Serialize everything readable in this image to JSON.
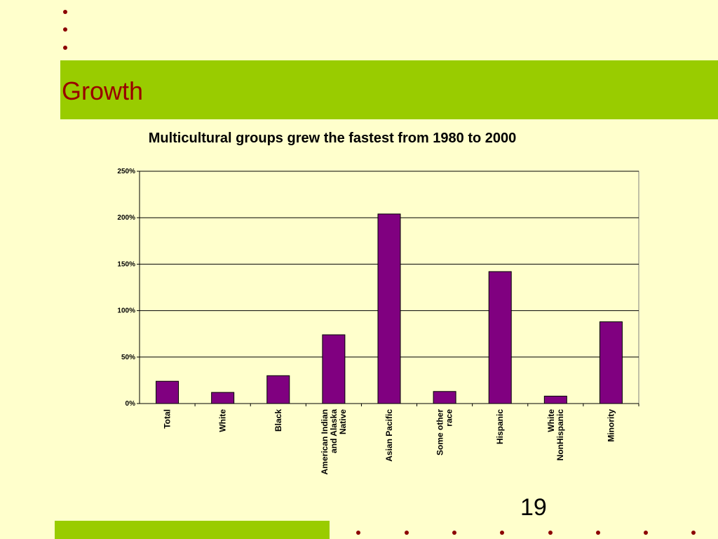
{
  "slide": {
    "title": "Growth",
    "page_number": "19",
    "accent_color": "#99cc00",
    "title_color": "#990000",
    "background_color": "#ffffcc",
    "bullet_color": "#8b0000"
  },
  "chart_data": {
    "type": "bar",
    "title": "Multicultural groups grew the fastest from 1980 to 2000",
    "xlabel": "",
    "ylabel": "",
    "categories": [
      [
        "Total"
      ],
      [
        "White"
      ],
      [
        "Black"
      ],
      [
        "American Indian",
        "and Alaska",
        "Native"
      ],
      [
        "Asian Pacific"
      ],
      [
        "Some other",
        "race"
      ],
      [
        "Hispanic"
      ],
      [
        "White",
        "NonHispanic"
      ],
      [
        "Minority"
      ]
    ],
    "values": [
      24,
      12,
      30,
      74,
      204,
      13,
      142,
      8,
      88
    ],
    "unit": "%",
    "ylim": [
      0,
      250
    ],
    "yticks": [
      "0%",
      "50%",
      "100%",
      "150%",
      "200%",
      "250%"
    ],
    "bar_color": "#800080",
    "grid": true,
    "legend": "none"
  }
}
